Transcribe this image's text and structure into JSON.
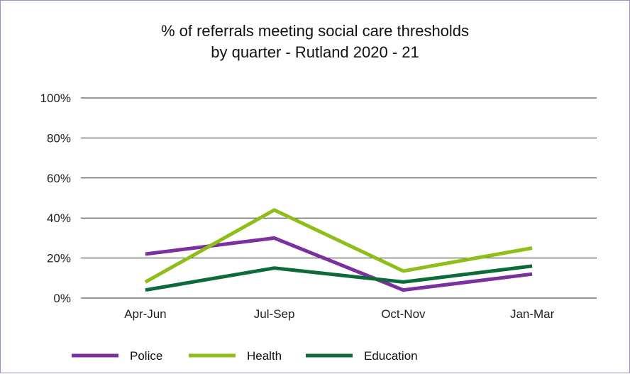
{
  "colors": {
    "frame": "#a58bbf",
    "grid": "#333333"
  },
  "chart_data": {
    "type": "line",
    "title_lines": [
      "% of referrals meeting social care thresholds",
      "by quarter - Rutland 2020 - 21"
    ],
    "categories": [
      "Apr-Jun",
      "Jul-Sep",
      "Oct-Nov",
      "Jan-Mar"
    ],
    "y_ticks": [
      "0%",
      "20%",
      "40%",
      "60%",
      "80%",
      "100%"
    ],
    "ylim": [
      0,
      100
    ],
    "grid": true,
    "legend_position": "bottom",
    "series": [
      {
        "name": "Police",
        "color": "#7b2fa0",
        "values": [
          22,
          30,
          4,
          12
        ]
      },
      {
        "name": "Health",
        "color": "#8fbe1b",
        "values": [
          8,
          44,
          13.5,
          25
        ]
      },
      {
        "name": "Education",
        "color": "#0d6b3a",
        "values": [
          4,
          15,
          8,
          16
        ]
      }
    ]
  }
}
